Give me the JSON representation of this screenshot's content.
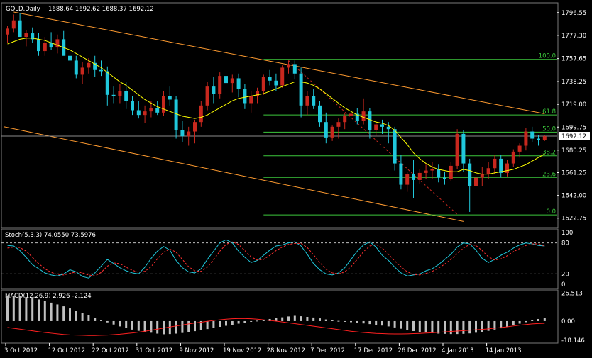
{
  "chart_data": [
    {
      "panel": "price",
      "type": "candlestick",
      "symbol": "GOLD,Daily",
      "ohlc_readout": "1688.64 1692.62 1688.37 1692.12",
      "current_price": "1692.12",
      "y_ticks": [
        "1796.55",
        "1777.30",
        "1757.65",
        "1738.25",
        "1719.00",
        "1699.75",
        "1680.25",
        "1661.25",
        "1642.00",
        "1622.75"
      ],
      "y_tick_values": [
        1796.55,
        1777.3,
        1757.65,
        1738.25,
        1719.0,
        1699.75,
        1680.25,
        1661.25,
        1642.0,
        1622.75
      ],
      "ylim": [
        1616,
        1803
      ],
      "fib_levels": [
        {
          "label": "100.0",
          "value": 1757.0
        },
        {
          "label": "61.8",
          "value": 1710.0
        },
        {
          "label": "50.0",
          "value": 1695.5
        },
        {
          "label": "38.2",
          "value": 1675.5
        },
        {
          "label": "23.6",
          "value": 1657.2
        },
        {
          "label": "0.0",
          "value": 1625.5
        }
      ],
      "candles_ohlc": [
        [
          1778,
          1785,
          1771,
          1783
        ],
        [
          1783,
          1795,
          1780,
          1790
        ],
        [
          1790,
          1796,
          1782,
          1776
        ],
        [
          1776,
          1782,
          1768,
          1779
        ],
        [
          1779,
          1784,
          1771,
          1774
        ],
        [
          1774,
          1779,
          1760,
          1764
        ],
        [
          1764,
          1776,
          1760,
          1771
        ],
        [
          1771,
          1780,
          1765,
          1767
        ],
        [
          1767,
          1778,
          1762,
          1774
        ],
        [
          1774,
          1781,
          1768,
          1760
        ],
        [
          1760,
          1764,
          1752,
          1756
        ],
        [
          1756,
          1760,
          1741,
          1744
        ],
        [
          1744,
          1755,
          1736,
          1750
        ],
        [
          1750,
          1758,
          1745,
          1754
        ],
        [
          1754,
          1760,
          1742,
          1748
        ],
        [
          1748,
          1756,
          1743,
          1747
        ],
        [
          1747,
          1751,
          1718,
          1727
        ],
        [
          1727,
          1734,
          1720,
          1726
        ],
        [
          1726,
          1736,
          1720,
          1730
        ],
        [
          1730,
          1738,
          1715,
          1722
        ],
        [
          1722,
          1726,
          1710,
          1714
        ],
        [
          1714,
          1722,
          1707,
          1710
        ],
        [
          1710,
          1718,
          1703,
          1713
        ],
        [
          1713,
          1722,
          1708,
          1716
        ],
        [
          1716,
          1722,
          1710,
          1712
        ],
        [
          1712,
          1730,
          1709,
          1726
        ],
        [
          1726,
          1734,
          1718,
          1723
        ],
        [
          1723,
          1726,
          1690,
          1697
        ],
        [
          1697,
          1705,
          1687,
          1692
        ],
        [
          1692,
          1700,
          1684,
          1696
        ],
        [
          1696,
          1706,
          1686,
          1704
        ],
        [
          1704,
          1722,
          1700,
          1718
        ],
        [
          1718,
          1738,
          1714,
          1734
        ],
        [
          1734,
          1742,
          1720,
          1728
        ],
        [
          1728,
          1746,
          1724,
          1743
        ],
        [
          1743,
          1749,
          1733,
          1737
        ],
        [
          1737,
          1744,
          1729,
          1741
        ],
        [
          1741,
          1745,
          1725,
          1732
        ],
        [
          1732,
          1736,
          1715,
          1720
        ],
        [
          1720,
          1730,
          1712,
          1726
        ],
        [
          1726,
          1733,
          1720,
          1730
        ],
        [
          1730,
          1744,
          1727,
          1742
        ],
        [
          1742,
          1748,
          1735,
          1739
        ],
        [
          1739,
          1745,
          1730,
          1735
        ],
        [
          1735,
          1752,
          1733,
          1750
        ],
        [
          1750,
          1756,
          1745,
          1753
        ],
        [
          1753,
          1756,
          1740,
          1745
        ],
        [
          1745,
          1750,
          1708,
          1718
        ],
        [
          1718,
          1730,
          1710,
          1726
        ],
        [
          1726,
          1732,
          1715,
          1718
        ],
        [
          1718,
          1722,
          1700,
          1704
        ],
        [
          1704,
          1712,
          1686,
          1691
        ],
        [
          1691,
          1701,
          1688,
          1700
        ],
        [
          1700,
          1707,
          1690,
          1704
        ],
        [
          1704,
          1712,
          1698,
          1709
        ],
        [
          1709,
          1717,
          1702,
          1711
        ],
        [
          1711,
          1716,
          1702,
          1705
        ],
        [
          1705,
          1724,
          1702,
          1713
        ],
        [
          1713,
          1716,
          1690,
          1697
        ],
        [
          1697,
          1704,
          1692,
          1702
        ],
        [
          1702,
          1706,
          1694,
          1700
        ],
        [
          1700,
          1704,
          1686,
          1698
        ],
        [
          1698,
          1700,
          1663,
          1669
        ],
        [
          1669,
          1676,
          1647,
          1651
        ],
        [
          1651,
          1662,
          1645,
          1660
        ],
        [
          1660,
          1672,
          1640,
          1655
        ],
        [
          1655,
          1664,
          1652,
          1661
        ],
        [
          1661,
          1668,
          1656,
          1663
        ],
        [
          1663,
          1670,
          1656,
          1664
        ],
        [
          1664,
          1668,
          1653,
          1657
        ],
        [
          1657,
          1662,
          1651,
          1656
        ],
        [
          1656,
          1670,
          1654,
          1667
        ],
        [
          1667,
          1698,
          1664,
          1694
        ],
        [
          1694,
          1697,
          1662,
          1669
        ],
        [
          1669,
          1673,
          1628,
          1650
        ],
        [
          1650,
          1662,
          1641,
          1657
        ],
        [
          1657,
          1666,
          1650,
          1660
        ],
        [
          1660,
          1670,
          1656,
          1665
        ],
        [
          1665,
          1676,
          1660,
          1673
        ],
        [
          1673,
          1676,
          1657,
          1661
        ],
        [
          1661,
          1672,
          1658,
          1669
        ],
        [
          1669,
          1681,
          1666,
          1679
        ],
        [
          1679,
          1686,
          1674,
          1684
        ],
        [
          1684,
          1699,
          1680,
          1696
        ],
        [
          1696,
          1700,
          1687,
          1690
        ],
        [
          1690,
          1693,
          1684,
          1689
        ],
        [
          1689,
          1693,
          1688,
          1692
        ]
      ],
      "ma_line": [
        1770,
        1772,
        1774,
        1775,
        1775,
        1774,
        1773,
        1771,
        1769,
        1767,
        1765,
        1762,
        1759,
        1756,
        1753,
        1750,
        1746,
        1742,
        1738,
        1735,
        1731,
        1727,
        1723,
        1720,
        1717,
        1715,
        1713,
        1711,
        1709,
        1708,
        1707,
        1708,
        1710,
        1713,
        1716,
        1719,
        1722,
        1724,
        1725,
        1726,
        1727,
        1728,
        1730,
        1732,
        1734,
        1736,
        1738,
        1738,
        1737,
        1735,
        1732,
        1728,
        1724,
        1720,
        1716,
        1713,
        1710,
        1708,
        1706,
        1704,
        1703,
        1701,
        1697,
        1691,
        1685,
        1678,
        1673,
        1669,
        1666,
        1664,
        1663,
        1662,
        1662,
        1664,
        1663,
        1661,
        1660,
        1660,
        1661,
        1662,
        1663,
        1664,
        1666,
        1668,
        1671,
        1674,
        1677
      ]
    },
    {
      "panel": "stochastic",
      "type": "line",
      "title": "Stoch(5,3,3) 74.0550 73.5976",
      "y_ticks": [
        "100",
        "80",
        "20",
        "0"
      ],
      "y_tick_values": [
        100,
        80,
        20,
        0
      ],
      "ylim": [
        0,
        100
      ],
      "series": [
        {
          "name": "%K",
          "values": [
            75,
            74,
            65,
            52,
            38,
            30,
            22,
            18,
            16,
            20,
            28,
            24,
            15,
            12,
            22,
            35,
            48,
            40,
            32,
            26,
            22,
            20,
            33,
            50,
            64,
            73,
            66,
            46,
            32,
            24,
            22,
            30,
            48,
            64,
            80,
            86,
            80,
            64,
            52,
            42,
            46,
            56,
            66,
            74,
            76,
            80,
            82,
            74,
            58,
            40,
            28,
            20,
            18,
            22,
            32,
            48,
            64,
            76,
            82,
            72,
            56,
            46,
            33,
            22,
            16,
            18,
            20,
            26,
            30,
            38,
            48,
            58,
            72,
            80,
            78,
            66,
            50,
            42,
            48,
            56,
            62,
            70,
            76,
            80,
            78,
            75,
            74
          ]
        },
        {
          "name": "%D",
          "values": [
            70,
            72,
            71,
            64,
            52,
            40,
            30,
            23,
            19,
            18,
            21,
            24,
            22,
            18,
            16,
            23,
            35,
            41,
            40,
            33,
            27,
            23,
            25,
            34,
            49,
            62,
            68,
            62,
            48,
            34,
            26,
            25,
            33,
            47,
            64,
            77,
            82,
            77,
            65,
            53,
            47,
            48,
            56,
            65,
            72,
            77,
            79,
            79,
            71,
            57,
            42,
            29,
            22,
            20,
            24,
            34,
            48,
            63,
            74,
            77,
            70,
            58,
            45,
            34,
            24,
            19,
            18,
            21,
            25,
            31,
            39,
            48,
            59,
            70,
            77,
            75,
            65,
            53,
            47,
            49,
            55,
            63,
            69,
            75,
            78,
            78,
            74
          ]
        }
      ]
    },
    {
      "panel": "macd",
      "type": "bar",
      "title": "MACD(12,26,9) 2.926 -2.124",
      "y_ticks": [
        "26.513",
        "0.00",
        "-18.146"
      ],
      "y_tick_values": [
        26.513,
        0.0,
        -18.146
      ],
      "ylim": [
        -19.5,
        27.5
      ],
      "histogram": [
        24,
        24,
        23.5,
        22.8,
        21.8,
        20.5,
        19,
        17.5,
        15.8,
        14,
        12,
        9.8,
        7.6,
        5.4,
        3.2,
        1,
        -1.2,
        -3.2,
        -5,
        -6.6,
        -8,
        -9.2,
        -10.2,
        -11,
        -11.8,
        -12.4,
        -12.2,
        -11.8,
        -11.2,
        -10.4,
        -9.5,
        -8.5,
        -7.5,
        -6.4,
        -5.4,
        -4.4,
        -3.4,
        -2.4,
        -1.4,
        -0.6,
        0.4,
        1.2,
        2,
        2.8,
        3.6,
        4.4,
        5,
        4.6,
        4,
        3.4,
        2.6,
        1.6,
        0.8,
        0.2,
        -0.4,
        -1,
        -1.6,
        -2.2,
        -2.8,
        -3.4,
        -4.2,
        -5,
        -6,
        -7.2,
        -8.4,
        -9.4,
        -10.2,
        -10.8,
        -11.4,
        -11.8,
        -12,
        -12.2,
        -12.2,
        -12,
        -11.6,
        -11,
        -10.2,
        -9.2,
        -8,
        -6.8,
        -5.4,
        -4,
        -2.4,
        -1,
        0.8,
        2,
        2.9
      ],
      "signal": [
        -6,
        -6.8,
        -7.6,
        -8.4,
        -9.2,
        -10,
        -10.8,
        -11.4,
        -12,
        -12.6,
        -13,
        -13.2,
        -13.4,
        -13.6,
        -13.6,
        -13.4,
        -13.2,
        -12.8,
        -12.4,
        -11.8,
        -11.2,
        -10.4,
        -9.6,
        -8.6,
        -7.6,
        -6.6,
        -5.6,
        -4.6,
        -3.6,
        -2.6,
        -1.8,
        -1,
        -0.2,
        0.6,
        1.2,
        1.8,
        2.2,
        2.4,
        2.4,
        2.2,
        1.8,
        1.2,
        0.6,
        0,
        -0.8,
        -1.6,
        -2.4,
        -3.2,
        -4,
        -4.8,
        -5.6,
        -6.4,
        -7.2,
        -8,
        -8.8,
        -9.6,
        -10.2,
        -10.8,
        -11.2,
        -11.6,
        -11.8,
        -12,
        -12.1,
        -12.1,
        -12,
        -11.8,
        -11.6,
        -11.3,
        -11,
        -10.6,
        -10.2,
        -9.8,
        -9.4,
        -9,
        -8.6,
        -8.2,
        -7.8,
        -7.3,
        -6.7,
        -6.1,
        -5.4,
        -4.6,
        -3.8,
        -3.2,
        -2.6,
        -2.3,
        -2.1
      ]
    }
  ],
  "x_ticks": [
    "3 Oct 2012",
    "12 Oct 2012",
    "22 Oct 2012",
    "31 Oct 2012",
    "9 Nov 2012",
    "19 Nov 2012",
    "28 Nov 2012",
    "7 Dec 2012",
    "17 Dec 2012",
    "26 Dec 2012",
    "4 Jan 2013",
    "14 Jan 2013"
  ],
  "x_tick_index": [
    0,
    7,
    14,
    21,
    28,
    35,
    42,
    49,
    56,
    63,
    70,
    77
  ],
  "colors": {
    "background": "#000000",
    "bull_candle": "#c8281e",
    "bear_candle": "#20c8dc",
    "ma": "#ffff00",
    "channel": "#ff9b30",
    "fib": "#3cc83c",
    "stoch_k": "#20c8dc",
    "stoch_d": "#ff3030",
    "macd_hist": "#c0c0c0",
    "macd_signal": "#ff2020",
    "axis_text": "#ffffff"
  }
}
